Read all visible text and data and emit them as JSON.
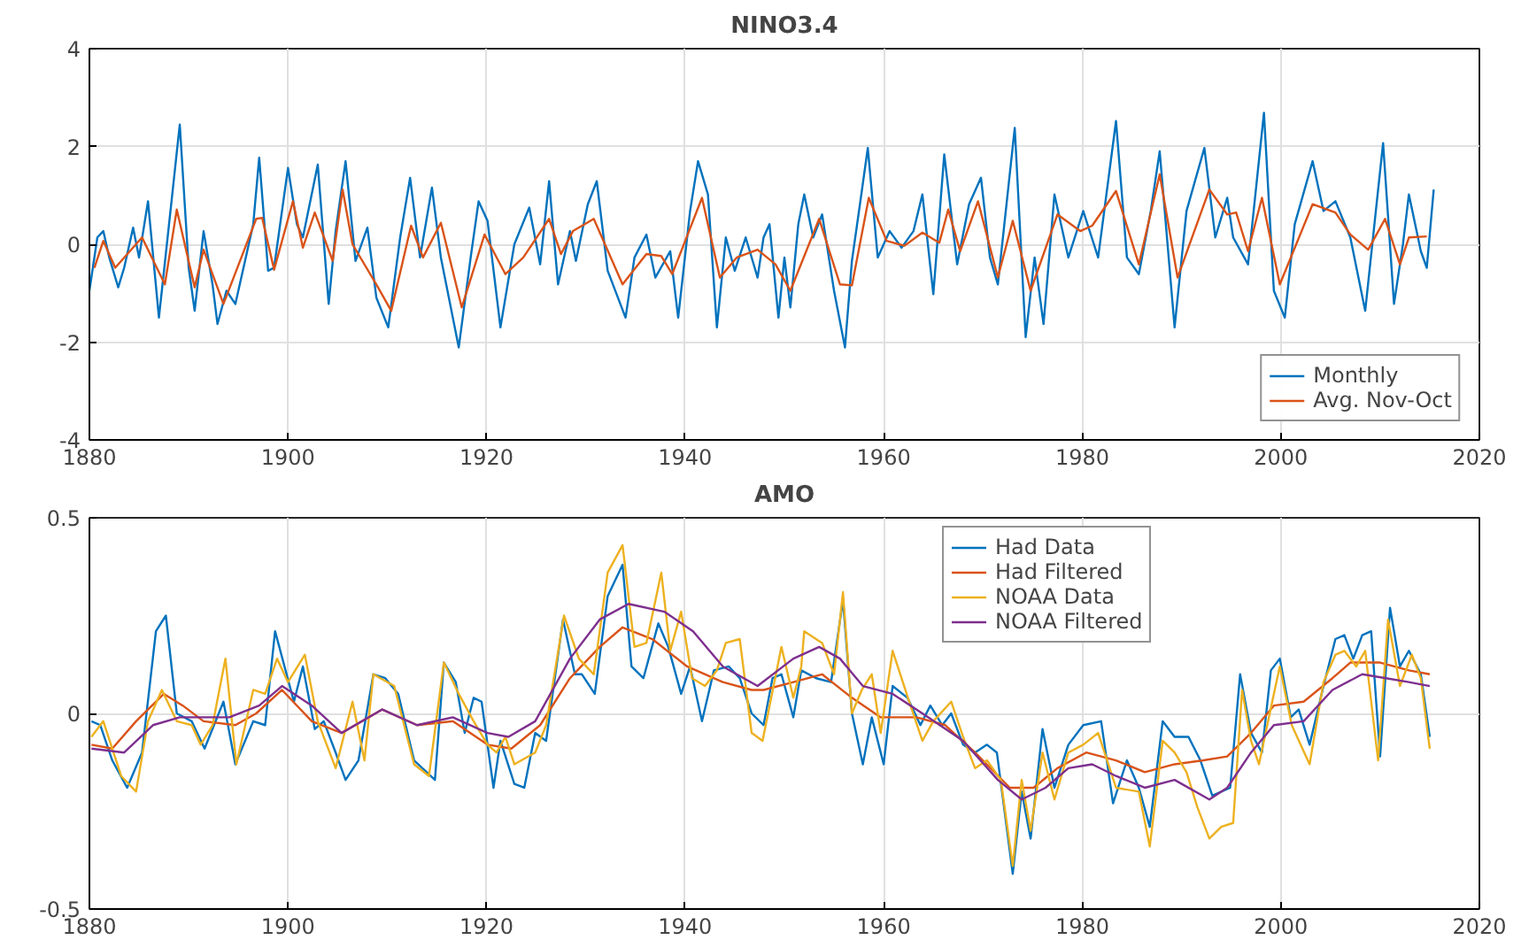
{
  "chart_data": [
    {
      "type": "line",
      "title": "NINO3.4",
      "xlim": [
        1880,
        2020
      ],
      "xticks": [
        1880,
        1900,
        1920,
        1940,
        1960,
        1980,
        2000,
        2020
      ],
      "ylim": [
        -4,
        4
      ],
      "yticks": [
        -4,
        -2,
        0,
        2,
        4
      ],
      "grid": true,
      "legend": "bottom right",
      "series": [
        {
          "name": "Monthly",
          "color": "#0072bd",
          "x": [
            1880.0,
            1880.8,
            1881.4,
            1882.0,
            1882.9,
            1883.5,
            1884.4,
            1885.0,
            1885.9,
            1887.0,
            1888.2,
            1889.1,
            1890.0,
            1890.6,
            1891.5,
            1892.4,
            1892.9,
            1893.8,
            1894.7,
            1896.5,
            1897.1,
            1898.0,
            1898.6,
            1900.0,
            1900.9,
            1901.5,
            1903.0,
            1904.1,
            1904.8,
            1905.8,
            1906.8,
            1908.0,
            1908.9,
            1910.1,
            1911.3,
            1912.3,
            1913.3,
            1914.5,
            1915.4,
            1917.2,
            1918.4,
            1919.2,
            1920.1,
            1921.4,
            1922.8,
            1924.3,
            1925.4,
            1926.3,
            1927.2,
            1928.4,
            1929.0,
            1930.2,
            1931.1,
            1932.2,
            1934.0,
            1934.9,
            1936.1,
            1937.0,
            1938.5,
            1939.3,
            1940.5,
            1941.3,
            1942.3,
            1943.2,
            1944.1,
            1945.0,
            1946.1,
            1947.3,
            1947.9,
            1948.5,
            1949.4,
            1950.0,
            1950.6,
            1951.4,
            1952.0,
            1952.9,
            1953.8,
            1955.0,
            1956.1,
            1956.8,
            1957.7,
            1958.4,
            1959.4,
            1960.6,
            1961.8,
            1963.0,
            1963.9,
            1965.0,
            1966.1,
            1967.4,
            1968.6,
            1969.8,
            1970.7,
            1971.5,
            1973.2,
            1974.3,
            1975.2,
            1976.1,
            1977.2,
            1978.6,
            1980.1,
            1981.6,
            1983.4,
            1984.5,
            1985.7,
            1986.9,
            1987.8,
            1989.3,
            1990.5,
            1992.3,
            1993.4,
            1994.6,
            1995.2,
            1996.7,
            1998.3,
            1999.3,
            2000.4,
            2001.4,
            2003.2,
            2004.3,
            2005.5,
            2007.0,
            2008.5,
            2010.3,
            2011.4,
            2012.3,
            2012.9,
            2014.1,
            2014.7,
            2015.4
          ],
          "values": [
            -0.95,
            0.14,
            0.27,
            -0.27,
            -0.88,
            -0.48,
            0.34,
            -0.27,
            0.88,
            -1.5,
            0.75,
            2.45,
            -0.48,
            -1.36,
            0.27,
            -0.82,
            -1.63,
            -0.95,
            -1.22,
            0.41,
            1.77,
            -0.54,
            -0.48,
            1.56,
            0.41,
            0.14,
            1.63,
            -1.22,
            0.27,
            1.7,
            -0.34,
            0.34,
            -1.09,
            -1.7,
            0.14,
            1.36,
            -0.27,
            1.16,
            -0.27,
            -2.11,
            -0.27,
            0.88,
            0.48,
            -1.7,
            0.0,
            0.75,
            -0.41,
            1.29,
            -0.82,
            0.27,
            -0.34,
            0.82,
            1.29,
            -0.54,
            -1.5,
            -0.27,
            0.2,
            -0.68,
            -0.14,
            -1.5,
            0.68,
            1.7,
            1.02,
            -1.7,
            0.14,
            -0.54,
            0.14,
            -0.68,
            0.14,
            0.41,
            -1.5,
            -0.27,
            -1.29,
            0.41,
            1.02,
            0.14,
            0.61,
            -0.95,
            -2.11,
            -0.34,
            0.95,
            1.97,
            -0.27,
            0.27,
            -0.07,
            0.27,
            1.02,
            -1.02,
            1.84,
            -0.41,
            0.82,
            1.36,
            -0.27,
            -0.82,
            2.38,
            -1.9,
            -0.27,
            -1.63,
            1.02,
            -0.27,
            0.68,
            -0.27,
            2.52,
            -0.27,
            -0.61,
            0.68,
            1.9,
            -1.7,
            0.68,
            1.97,
            0.14,
            0.95,
            0.14,
            -0.41,
            2.69,
            -0.95,
            -1.5,
            0.41,
            1.7,
            0.68,
            0.88,
            0.14,
            -1.36,
            2.07,
            -1.22,
            0.0,
            1.02,
            -0.14,
            -0.48,
            1.12
          ]
        },
        {
          "name": "Avg. Nov-Oct",
          "color": "#d95319",
          "x": [
            1880.5,
            1881.4,
            1882.6,
            1885.3,
            1887.6,
            1888.8,
            1890.6,
            1891.5,
            1893.5,
            1896.8,
            1897.4,
            1898.6,
            1900.5,
            1901.5,
            1902.7,
            1904.5,
            1905.5,
            1906.5,
            1908.9,
            1910.4,
            1912.4,
            1913.6,
            1915.4,
            1917.5,
            1919.8,
            1921.9,
            1923.7,
            1926.3,
            1927.5,
            1928.7,
            1930.8,
            1933.7,
            1936.1,
            1937.6,
            1938.7,
            1941.7,
            1943.5,
            1945.2,
            1947.3,
            1949.1,
            1950.6,
            1953.5,
            1955.6,
            1956.8,
            1958.5,
            1960.3,
            1962.1,
            1963.9,
            1965.6,
            1966.5,
            1967.7,
            1969.5,
            1971.5,
            1973.0,
            1974.8,
            1977.5,
            1979.8,
            1981.0,
            1983.4,
            1985.7,
            1987.8,
            1989.6,
            1992.8,
            1994.6,
            1995.5,
            1996.7,
            1998.1,
            1999.9,
            2003.2,
            2005.5,
            2007.0,
            2008.8,
            2010.5,
            2012.0,
            2012.9,
            2014.7
          ],
          "values": [
            -0.48,
            0.07,
            -0.48,
            0.14,
            -0.82,
            0.71,
            -0.88,
            -0.11,
            -1.22,
            0.52,
            0.54,
            -0.52,
            0.88,
            -0.07,
            0.65,
            -0.34,
            1.12,
            0.0,
            -0.82,
            -1.36,
            0.38,
            -0.27,
            0.44,
            -1.29,
            0.2,
            -0.61,
            -0.27,
            0.52,
            -0.2,
            0.27,
            0.52,
            -0.82,
            -0.2,
            -0.24,
            -0.61,
            0.95,
            -0.68,
            -0.27,
            -0.11,
            -0.41,
            -0.95,
            0.52,
            -0.82,
            -0.84,
            0.95,
            0.07,
            -0.03,
            0.24,
            0.03,
            0.71,
            -0.14,
            0.88,
            -0.68,
            0.48,
            -0.95,
            0.61,
            0.27,
            0.38,
            1.09,
            -0.41,
            1.43,
            -0.68,
            1.12,
            0.61,
            0.65,
            -0.14,
            0.95,
            -0.82,
            0.82,
            0.65,
            0.2,
            -0.11,
            0.52,
            -0.41,
            0.14,
            0.16
          ]
        }
      ]
    },
    {
      "type": "line",
      "title": "AMO",
      "xlim": [
        1880,
        2020
      ],
      "xticks": [
        1880,
        1900,
        1920,
        1940,
        1960,
        1980,
        2000,
        2020
      ],
      "ylim": [
        -0.5,
        0.5
      ],
      "yticks": [
        -0.5,
        0,
        0.5
      ],
      "grid": true,
      "legend": "top",
      "series": [
        {
          "name": "Had Data",
          "color": "#0072bd",
          "x": [
            1880.2,
            1881.1,
            1882.3,
            1883.8,
            1885.3,
            1886.7,
            1887.7,
            1888.8,
            1890.3,
            1891.6,
            1893.5,
            1894.7,
            1896.5,
            1897.7,
            1898.7,
            1900.6,
            1901.5,
            1902.7,
            1903.6,
            1904.8,
            1905.8,
            1907.1,
            1908.6,
            1909.8,
            1911.1,
            1912.7,
            1914.8,
            1915.7,
            1916.9,
            1917.8,
            1918.7,
            1919.5,
            1920.7,
            1921.4,
            1922.8,
            1923.8,
            1924.9,
            1926.0,
            1927.7,
            1928.9,
            1929.6,
            1930.9,
            1932.2,
            1933.7,
            1934.6,
            1935.8,
            1937.3,
            1938.3,
            1939.6,
            1940.5,
            1941.7,
            1942.9,
            1944.4,
            1945.5,
            1946.7,
            1947.9,
            1948.8,
            1949.7,
            1950.9,
            1951.7,
            1953.2,
            1954.7,
            1955.9,
            1956.8,
            1957.9,
            1958.8,
            1960.0,
            1960.9,
            1962.4,
            1963.7,
            1964.7,
            1965.9,
            1966.8,
            1968.0,
            1969.2,
            1970.4,
            1971.4,
            1973.0,
            1973.9,
            1974.8,
            1976.0,
            1977.2,
            1978.6,
            1980.1,
            1981.9,
            1983.1,
            1984.5,
            1985.7,
            1986.8,
            1988.1,
            1989.3,
            1990.7,
            1991.9,
            1993.1,
            1994.9,
            1995.9,
            1997.0,
            1998.1,
            1999.0,
            1999.9,
            2001.0,
            2001.8,
            2002.9,
            2004.3,
            2005.5,
            2006.4,
            2007.3,
            2008.2,
            2009.1,
            2010.0,
            2011.0,
            2012.0,
            2012.9,
            2014.1,
            2015.0
          ],
          "values": [
            -0.02,
            -0.03,
            -0.12,
            -0.19,
            -0.1,
            0.21,
            0.25,
            0.0,
            -0.02,
            -0.09,
            0.03,
            -0.13,
            -0.02,
            -0.03,
            0.21,
            0.03,
            0.12,
            -0.04,
            -0.02,
            -0.1,
            -0.17,
            -0.12,
            0.1,
            0.09,
            0.05,
            -0.12,
            -0.17,
            0.13,
            0.08,
            -0.05,
            0.04,
            0.03,
            -0.19,
            -0.07,
            -0.18,
            -0.19,
            -0.05,
            -0.07,
            0.24,
            0.1,
            0.1,
            0.05,
            0.3,
            0.38,
            0.12,
            0.09,
            0.23,
            0.17,
            0.05,
            0.12,
            -0.02,
            0.11,
            0.12,
            0.09,
            0.0,
            -0.03,
            0.09,
            0.1,
            -0.01,
            0.11,
            0.09,
            0.08,
            0.29,
            0.0,
            -0.13,
            -0.01,
            -0.13,
            0.07,
            0.04,
            -0.03,
            0.02,
            -0.03,
            0.0,
            -0.08,
            -0.1,
            -0.08,
            -0.1,
            -0.41,
            -0.2,
            -0.32,
            -0.04,
            -0.19,
            -0.08,
            -0.03,
            -0.02,
            -0.23,
            -0.12,
            -0.19,
            -0.29,
            -0.02,
            -0.06,
            -0.06,
            -0.12,
            -0.21,
            -0.19,
            0.1,
            -0.05,
            -0.1,
            0.11,
            0.14,
            -0.01,
            0.01,
            -0.08,
            0.07,
            0.19,
            0.2,
            0.14,
            0.2,
            0.21,
            -0.11,
            0.27,
            0.12,
            0.16,
            0.1,
            -0.06
          ]
        },
        {
          "name": "Had Filtered",
          "color": "#d95319",
          "x": [
            1880.2,
            1882.3,
            1884.7,
            1887.5,
            1889.4,
            1891.5,
            1894.7,
            1896.8,
            1899.4,
            1902.4,
            1905.4,
            1909.5,
            1913.0,
            1916.6,
            1920.1,
            1922.5,
            1925.4,
            1928.4,
            1931.4,
            1933.7,
            1936.7,
            1940.2,
            1943.8,
            1946.7,
            1947.9,
            1950.9,
            1953.8,
            1956.8,
            1959.7,
            1963.3,
            1966.2,
            1969.2,
            1972.7,
            1975.1,
            1977.5,
            1980.4,
            1983.4,
            1986.3,
            1989.3,
            1992.2,
            1994.6,
            1997.0,
            1999.3,
            2002.3,
            2005.2,
            2007.0,
            2010.0,
            2012.9,
            2015.0
          ],
          "values": [
            -0.08,
            -0.09,
            -0.02,
            0.05,
            0.02,
            -0.02,
            -0.03,
            0.0,
            0.06,
            -0.02,
            -0.05,
            0.01,
            -0.03,
            -0.02,
            -0.08,
            -0.09,
            -0.03,
            0.09,
            0.17,
            0.22,
            0.19,
            0.12,
            0.08,
            0.06,
            0.06,
            0.08,
            0.1,
            0.04,
            -0.01,
            -0.01,
            -0.03,
            -0.1,
            -0.19,
            -0.19,
            -0.14,
            -0.1,
            -0.12,
            -0.15,
            -0.13,
            -0.12,
            -0.11,
            -0.05,
            0.02,
            0.03,
            0.09,
            0.13,
            0.13,
            0.11,
            0.1
          ]
        },
        {
          "name": "NOAA Data",
          "color": "#edb120",
          "x": [
            1880.2,
            1881.4,
            1883.2,
            1884.7,
            1885.9,
            1887.3,
            1888.8,
            1890.3,
            1891.2,
            1892.4,
            1893.7,
            1894.8,
            1896.5,
            1897.7,
            1898.9,
            1900.0,
            1901.7,
            1903.0,
            1904.8,
            1906.5,
            1907.7,
            1908.6,
            1910.7,
            1912.7,
            1914.2,
            1915.7,
            1917.2,
            1918.7,
            1920.1,
            1921.0,
            1921.9,
            1922.8,
            1924.9,
            1926.0,
            1927.8,
            1929.3,
            1930.8,
            1932.2,
            1933.7,
            1934.9,
            1936.1,
            1937.6,
            1938.5,
            1939.6,
            1940.7,
            1942.0,
            1943.2,
            1944.1,
            1945.5,
            1946.7,
            1947.8,
            1949.7,
            1950.9,
            1951.7,
            1952.0,
            1953.8,
            1955.0,
            1955.9,
            1956.8,
            1957.8,
            1958.8,
            1959.7,
            1960.9,
            1962.7,
            1963.9,
            1965.0,
            1966.8,
            1968.0,
            1969.2,
            1970.4,
            1971.8,
            1973.0,
            1973.9,
            1974.8,
            1976.0,
            1977.2,
            1978.6,
            1980.1,
            1981.6,
            1983.4,
            1985.7,
            1986.8,
            1988.1,
            1989.3,
            1990.5,
            1991.6,
            1992.8,
            1994.0,
            1995.2,
            1996.1,
            1997.0,
            1997.8,
            1999.3,
            1999.9,
            2001.1,
            2002.9,
            2004.3,
            2005.5,
            2006.4,
            2007.6,
            2008.5,
            2009.8,
            2010.8,
            2012.0,
            2013.2,
            2014.1,
            2015.0
          ],
          "values": [
            -0.06,
            -0.02,
            -0.16,
            -0.2,
            -0.02,
            0.06,
            -0.02,
            -0.03,
            -0.08,
            -0.03,
            0.14,
            -0.13,
            0.06,
            0.05,
            0.14,
            0.08,
            0.15,
            -0.02,
            -0.14,
            0.03,
            -0.12,
            0.1,
            0.07,
            -0.13,
            -0.16,
            0.13,
            0.05,
            -0.02,
            -0.08,
            -0.1,
            -0.06,
            -0.13,
            -0.1,
            -0.03,
            0.25,
            0.14,
            0.1,
            0.36,
            0.43,
            0.17,
            0.18,
            0.36,
            0.16,
            0.26,
            0.09,
            0.07,
            0.11,
            0.18,
            0.19,
            -0.05,
            -0.07,
            0.17,
            0.04,
            0.12,
            0.21,
            0.18,
            0.1,
            0.31,
            0.0,
            0.06,
            0.1,
            -0.05,
            0.16,
            0.02,
            -0.07,
            -0.02,
            0.03,
            -0.06,
            -0.14,
            -0.12,
            -0.17,
            -0.39,
            -0.17,
            -0.3,
            -0.1,
            -0.22,
            -0.1,
            -0.08,
            -0.05,
            -0.19,
            -0.2,
            -0.34,
            -0.07,
            -0.1,
            -0.15,
            -0.24,
            -0.32,
            -0.29,
            -0.28,
            0.06,
            -0.07,
            -0.13,
            0.05,
            0.12,
            -0.03,
            -0.13,
            0.08,
            0.15,
            0.16,
            0.12,
            0.16,
            -0.12,
            0.24,
            0.07,
            0.15,
            0.09,
            -0.09
          ]
        },
        {
          "name": "NOAA Filtered",
          "color": "#7e2f8e",
          "x": [
            1880.2,
            1883.5,
            1886.4,
            1889.1,
            1894.1,
            1897.1,
            1899.4,
            1902.4,
            1905.4,
            1909.5,
            1913.0,
            1916.6,
            1920.1,
            1922.2,
            1924.9,
            1928.4,
            1931.4,
            1934.3,
            1937.9,
            1940.8,
            1943.8,
            1947.3,
            1950.9,
            1953.5,
            1955.6,
            1957.9,
            1960.9,
            1964.5,
            1968.0,
            1971.5,
            1973.9,
            1976.3,
            1978.6,
            1981.0,
            1983.4,
            1986.3,
            1989.3,
            1992.8,
            1994.6,
            1997.0,
            1999.3,
            2002.3,
            2005.2,
            2008.2,
            2010.6,
            2012.9,
            2015.0
          ],
          "values": [
            -0.09,
            -0.1,
            -0.03,
            -0.01,
            -0.01,
            0.02,
            0.07,
            0.02,
            -0.05,
            0.01,
            -0.03,
            -0.01,
            -0.05,
            -0.06,
            -0.02,
            0.14,
            0.24,
            0.28,
            0.26,
            0.21,
            0.12,
            0.07,
            0.14,
            0.17,
            0.14,
            0.07,
            0.05,
            -0.01,
            -0.07,
            -0.17,
            -0.22,
            -0.19,
            -0.14,
            -0.13,
            -0.16,
            -0.19,
            -0.17,
            -0.22,
            -0.19,
            -0.1,
            -0.03,
            -0.02,
            0.06,
            0.1,
            0.09,
            0.08,
            0.07
          ]
        }
      ]
    }
  ]
}
